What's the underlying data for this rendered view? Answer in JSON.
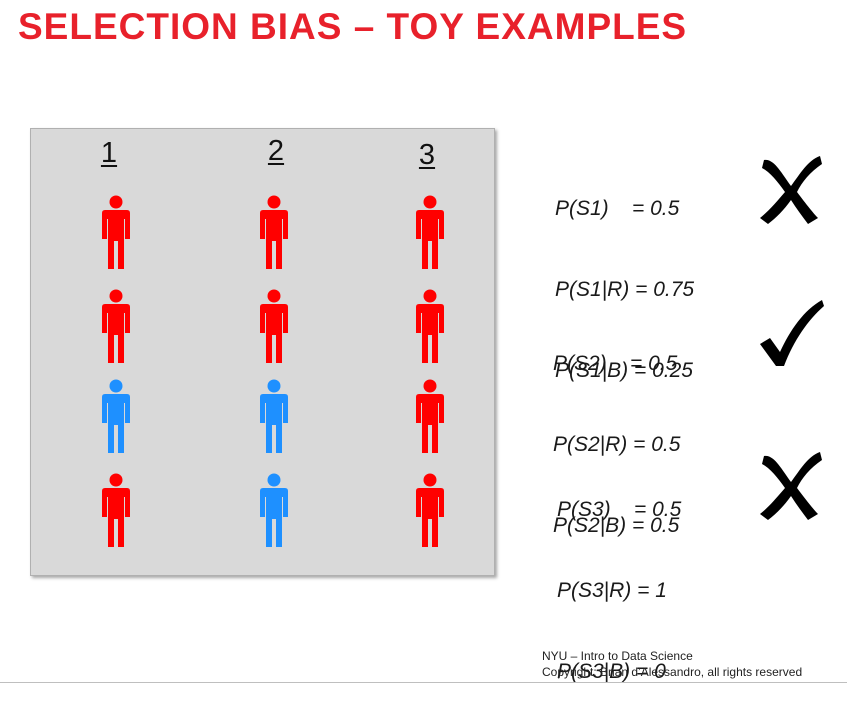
{
  "title": "SELECTION  BIAS – TOY EXAMPLES",
  "colors": {
    "red": "#ff0000",
    "blue": "#1e90ff",
    "title": "#e8212b",
    "panel": "#d9d9d9"
  },
  "columns": [
    {
      "label": "1",
      "people": [
        "red",
        "red",
        "blue",
        "red"
      ]
    },
    {
      "label": "2",
      "people": [
        "red",
        "red",
        "blue",
        "blue"
      ]
    },
    {
      "label": "3",
      "people": [
        "red",
        "red",
        "red",
        "red"
      ]
    }
  ],
  "stats": [
    {
      "lines": [
        "P(S1)    = 0.5",
        "P(S1|R) = 0.75",
        "P(S1|B) = 0.25"
      ],
      "mark": "cross-icon"
    },
    {
      "lines": [
        "P(S2)    = 0.5",
        "P(S2|R) = 0.5",
        "P(S2|B) = 0.5"
      ],
      "mark": "check-icon"
    },
    {
      "lines": [
        "P(S3)    = 0.5",
        "P(S3|R) = 1",
        "P(S3|B) = 0"
      ],
      "mark": "cross-icon"
    }
  ],
  "footer": {
    "line1": "NYU – Intro to Data Science",
    "line2": "Copyright: Brian d’Alessandro, all rights reserved"
  }
}
